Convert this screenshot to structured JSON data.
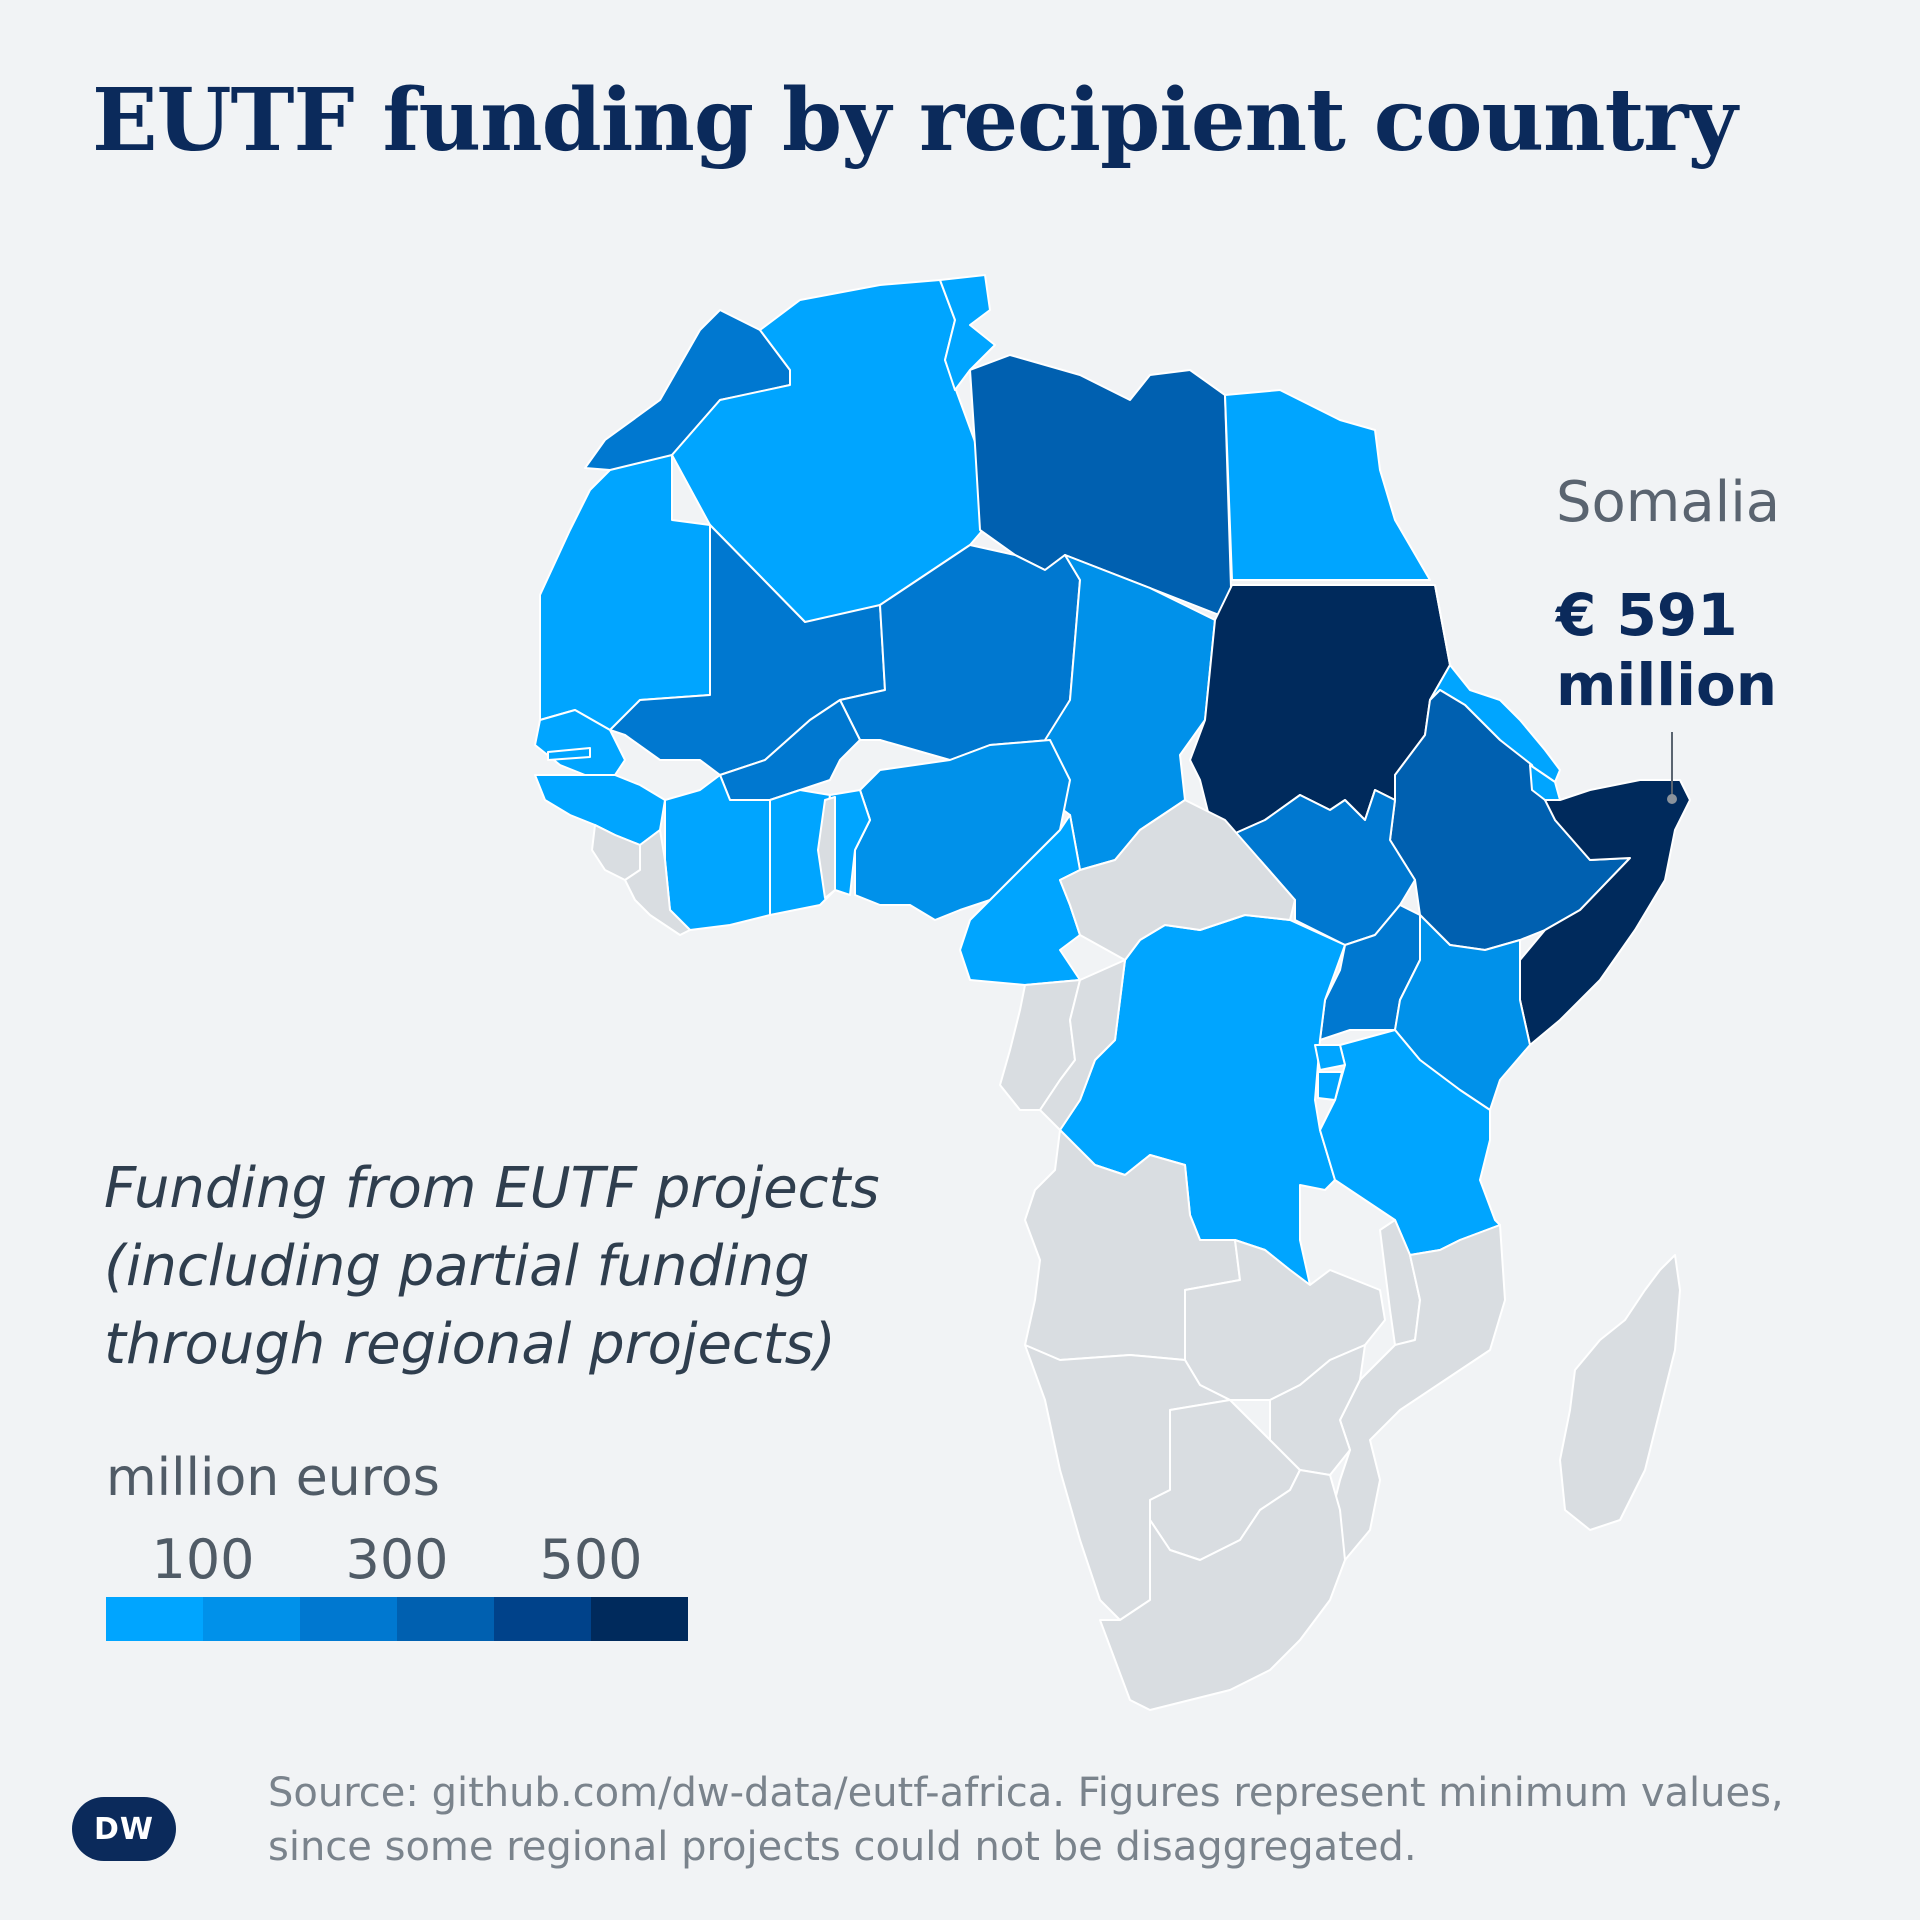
{
  "title": "EUTF funding by recipient country",
  "colors": {
    "background": "#f1f3f5",
    "no_data": "#d9dde1",
    "border": "#ffffff",
    "title": "#0b2a5b"
  },
  "callout": {
    "country": "Somalia",
    "value_line1": "€ 591",
    "value_line2": "million"
  },
  "legend": {
    "description": "Funding from EUTF projects (including partial funding through regional projects)",
    "unit": "million euros",
    "ticks": [
      "100",
      "300",
      "500"
    ],
    "scale_colors": [
      "#00a5ff",
      "#0091ea",
      "#0078d0",
      "#0060b0",
      "#00428a",
      "#002a5c"
    ]
  },
  "logo_text": "DW",
  "source": "Source: github.com/dw-data/eutf-africa. Figures represent minimum values, since some regional projects could not be disaggregated.",
  "countries": [
    {
      "name": "Morocco",
      "color": "#0078d0"
    },
    {
      "name": "Algeria",
      "color": "#00a5ff"
    },
    {
      "name": "Tunisia",
      "color": "#00a5ff"
    },
    {
      "name": "Libya",
      "color": "#0060b0"
    },
    {
      "name": "Egypt",
      "color": "#00a5ff"
    },
    {
      "name": "Mauritania",
      "color": "#00a5ff"
    },
    {
      "name": "Mali",
      "color": "#0078d0"
    },
    {
      "name": "Niger",
      "color": "#0078d0"
    },
    {
      "name": "Chad",
      "color": "#0091ea"
    },
    {
      "name": "Sudan",
      "color": "#002a5c"
    },
    {
      "name": "Senegal",
      "color": "#00a5ff"
    },
    {
      "name": "The Gambia",
      "color": "#00a5ff"
    },
    {
      "name": "Guinea",
      "color": "#00a5ff"
    },
    {
      "name": "Burkina Faso",
      "color": "#0078d0"
    },
    {
      "name": "Côte d'Ivoire",
      "color": "#00a5ff"
    },
    {
      "name": "Ghana",
      "color": "#00a5ff"
    },
    {
      "name": "Nigeria",
      "color": "#0091ea"
    },
    {
      "name": "Cameroon",
      "color": "#00a5ff"
    },
    {
      "name": "Eritrea",
      "color": "#00a5ff"
    },
    {
      "name": "Ethiopia",
      "color": "#0060b0"
    },
    {
      "name": "Djibouti",
      "color": "#00a5ff"
    },
    {
      "name": "Somalia",
      "color": "#002a5c"
    },
    {
      "name": "South Sudan",
      "color": "#0078d0"
    },
    {
      "name": "Uganda",
      "color": "#0078d0"
    },
    {
      "name": "Kenya",
      "color": "#0091ea"
    },
    {
      "name": "DR Congo",
      "color": "#00a5ff"
    },
    {
      "name": "Tanzania",
      "color": "#00a5ff"
    },
    {
      "name": "Rwanda",
      "color": "#00a5ff"
    },
    {
      "name": "Burundi",
      "color": "#00a5ff"
    },
    {
      "name": "Benin",
      "color": "#00a5ff"
    },
    {
      "name": "Togo",
      "color": "#d9dde1"
    },
    {
      "name": "Sierra Leone",
      "color": "#d9dde1"
    },
    {
      "name": "Liberia",
      "color": "#d9dde1"
    },
    {
      "name": "Central African Republic",
      "color": "#d9dde1"
    },
    {
      "name": "Gabon",
      "color": "#d9dde1"
    },
    {
      "name": "Republic of the Congo",
      "color": "#d9dde1"
    },
    {
      "name": "Angola",
      "color": "#d9dde1"
    },
    {
      "name": "Zambia",
      "color": "#d9dde1"
    },
    {
      "name": "Malawi",
      "color": "#d9dde1"
    },
    {
      "name": "Mozambique",
      "color": "#d9dde1"
    },
    {
      "name": "Namibia",
      "color": "#d9dde1"
    },
    {
      "name": "Botswana",
      "color": "#d9dde1"
    },
    {
      "name": "Zimbabwe",
      "color": "#d9dde1"
    },
    {
      "name": "South Africa",
      "color": "#d9dde1"
    },
    {
      "name": "Madagascar",
      "color": "#d9dde1"
    }
  ]
}
